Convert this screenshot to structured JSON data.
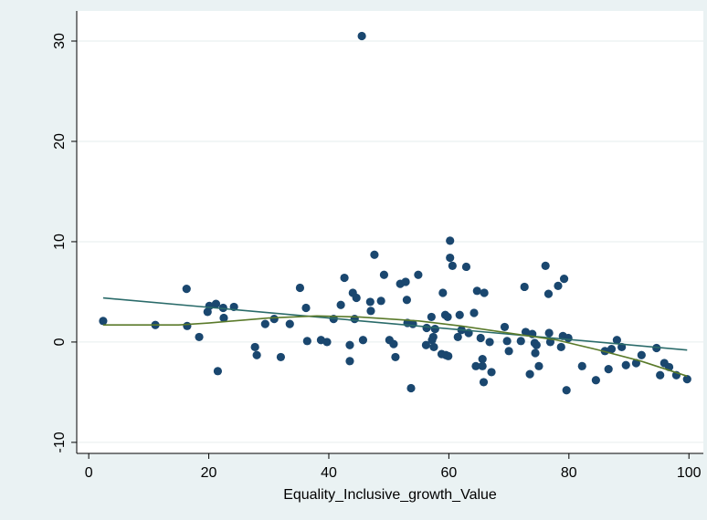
{
  "chart_data": {
    "type": "scatter",
    "x_label": "Equality_Inclusive_growth_Value",
    "xlim": [
      -2,
      102.4
    ],
    "ylim": [
      -11.1,
      33
    ],
    "xticks": [
      0,
      20,
      40,
      60,
      80,
      100
    ],
    "yticks": [
      -10,
      0,
      10,
      20,
      30
    ],
    "grid": true,
    "series": [
      {
        "style": "markers",
        "color": "#1a476f",
        "x": [
          2.4,
          11.1,
          16.3,
          16.4,
          18.4,
          19.8,
          20.1,
          21.2,
          21.5,
          22.4,
          22.5,
          24.2,
          27.7,
          28.0,
          29.4,
          30.9,
          32.0,
          33.5,
          35.2,
          36.2,
          36.4,
          38.7,
          39.7,
          40.8,
          42.0,
          42.6,
          43.5,
          43.5,
          44.0,
          44.3,
          44.6,
          45.5,
          45.7,
          46.9,
          47.0,
          47.6,
          48.7,
          49.2,
          50.1,
          50.8,
          51.1,
          51.9,
          52.8,
          53.0,
          53.1,
          53.7,
          54.0,
          54.9,
          56.2,
          56.3,
          57.1,
          57.2,
          57.4,
          57.5,
          57.7,
          58.8,
          59.0,
          59.4,
          59.5,
          59.8,
          59.9,
          60.2,
          60.2,
          60.6,
          61.5,
          61.8,
          62.1,
          62.9,
          63.3,
          64.2,
          64.5,
          64.7,
          65.3,
          65.6,
          65.6,
          65.8,
          65.9,
          66.8,
          67.1,
          69.3,
          69.7,
          70.0,
          72.0,
          72.6,
          72.8,
          73.5,
          73.9,
          74.3,
          74.4,
          74.6,
          75.0,
          76.1,
          76.6,
          76.7,
          76.9,
          78.2,
          78.7,
          79.0,
          79.2,
          79.6,
          79.9,
          82.2,
          84.5,
          86.0,
          86.6,
          87.1,
          88.0,
          88.8,
          89.5,
          91.2,
          92.1,
          94.6,
          95.2,
          95.9,
          96.7,
          97.9,
          99.7
        ],
        "values": [
          2.1,
          1.7,
          5.3,
          1.6,
          0.5,
          3.0,
          3.6,
          3.8,
          -2.9,
          3.4,
          2.4,
          3.5,
          -0.5,
          -1.3,
          1.8,
          2.3,
          -1.5,
          1.8,
          5.4,
          3.4,
          0.1,
          0.2,
          0.0,
          2.3,
          3.7,
          6.4,
          -0.3,
          -1.9,
          4.9,
          2.3,
          4.4,
          30.5,
          0.2,
          4.0,
          3.1,
          8.7,
          4.1,
          6.7,
          0.2,
          -0.2,
          -1.5,
          5.8,
          6.0,
          4.2,
          1.9,
          -4.6,
          1.8,
          6.7,
          -0.3,
          1.4,
          2.5,
          0.2,
          0.5,
          -0.5,
          1.3,
          -1.2,
          4.9,
          2.7,
          -1.3,
          2.5,
          -1.4,
          10.1,
          8.4,
          7.6,
          0.5,
          2.7,
          1.2,
          7.5,
          0.9,
          2.9,
          -2.4,
          5.1,
          0.4,
          -1.7,
          -2.4,
          -4.0,
          4.9,
          0.0,
          -3.0,
          1.5,
          0.1,
          -0.9,
          0.1,
          5.5,
          1.0,
          -3.2,
          0.8,
          -0.1,
          -1.1,
          -0.3,
          -2.4,
          7.6,
          4.8,
          0.9,
          0.0,
          5.6,
          -0.5,
          0.6,
          6.3,
          -4.8,
          0.4,
          -2.4,
          -3.8,
          -0.9,
          -2.7,
          -0.7,
          0.2,
          -0.5,
          -2.3,
          -2.1,
          -1.3,
          -0.6,
          -3.3,
          -2.1,
          -2.5,
          -3.3,
          -3.7
        ]
      },
      {
        "style": "line",
        "color": "#2a6b6a",
        "x": [
          2.4,
          99.7
        ],
        "values": [
          4.4,
          -0.8
        ]
      },
      {
        "style": "line",
        "color": "#5a7a2a",
        "x": [
          2.4,
          15,
          20,
          30,
          38,
          45,
          55,
          62,
          70,
          78,
          85,
          92,
          99.7
        ],
        "values": [
          1.7,
          1.7,
          1.9,
          2.4,
          2.6,
          2.5,
          2.1,
          1.6,
          0.9,
          0.2,
          -0.8,
          -1.9,
          -3.4
        ]
      }
    ]
  }
}
